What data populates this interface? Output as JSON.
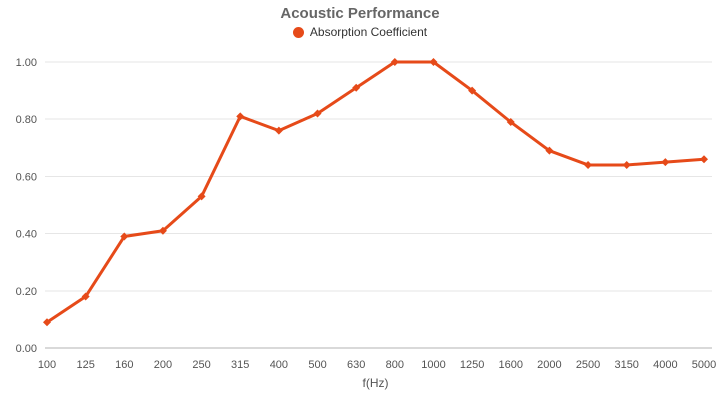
{
  "chart_data": {
    "type": "line",
    "title": "Acoustic Performance",
    "xlabel": "f(Hz)",
    "ylabel": "",
    "ylim": [
      0,
      1.0
    ],
    "yticks": [
      0,
      0.2,
      0.4,
      0.6,
      0.8,
      1.0
    ],
    "ytick_labels": [
      "0.00",
      "0.20",
      "0.40",
      "0.60",
      "0.80",
      "1.00"
    ],
    "grid": true,
    "legend_position": "top-center",
    "categories": [
      "100",
      "125",
      "160",
      "200",
      "250",
      "315",
      "400",
      "500",
      "630",
      "800",
      "1000",
      "1250",
      "1600",
      "2000",
      "2500",
      "3150",
      "4000",
      "5000"
    ],
    "series": [
      {
        "name": "Absorption Coefficient",
        "values": [
          0.09,
          0.18,
          0.39,
          0.41,
          0.53,
          0.81,
          0.76,
          0.82,
          0.91,
          1.0,
          1.0,
          0.9,
          0.79,
          0.69,
          0.64,
          0.64,
          0.65,
          0.66
        ]
      }
    ]
  },
  "colors": {
    "series": "#E64A19",
    "title": "#666666",
    "legend_text": "#333333",
    "axis_text": "#545454",
    "gridline": "#E6E6E6",
    "axis_line": "#B3B3B3",
    "background": "#FFFFFF"
  }
}
